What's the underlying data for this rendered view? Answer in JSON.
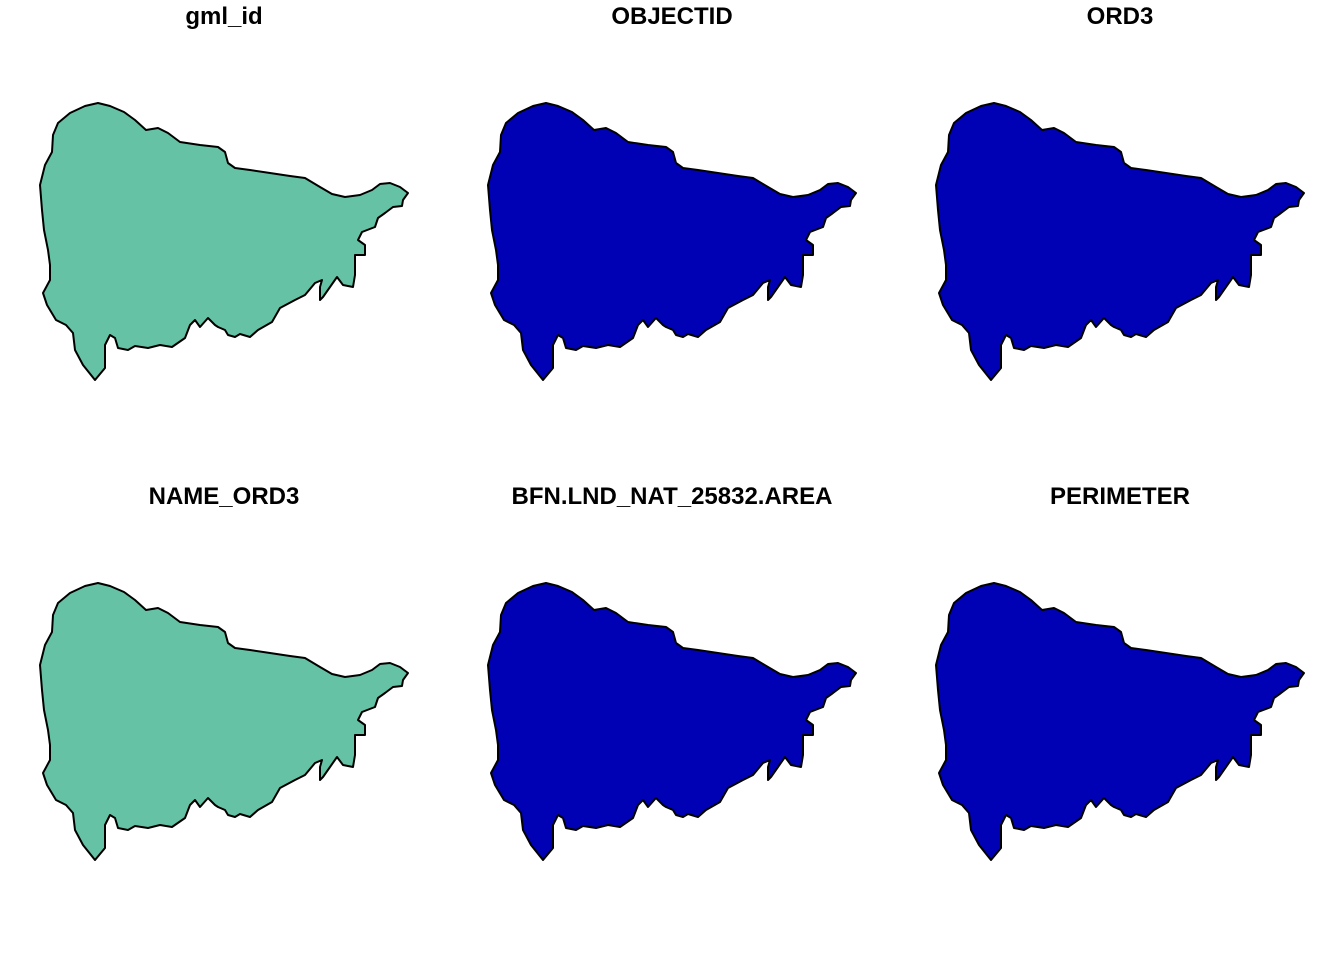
{
  "panels": [
    {
      "title": "gml_id",
      "fill": "#66c2a5"
    },
    {
      "title": "OBJECTID",
      "fill": "#0000b4"
    },
    {
      "title": "ORD3",
      "fill": "#0000b4"
    },
    {
      "title": "NAME_ORD3",
      "fill": "#66c2a5"
    },
    {
      "title": "BFN.LND_NAT_25832.AREA",
      "fill": "#0000b4"
    },
    {
      "title": "PERIMETER",
      "fill": "#0000b4"
    }
  ]
}
